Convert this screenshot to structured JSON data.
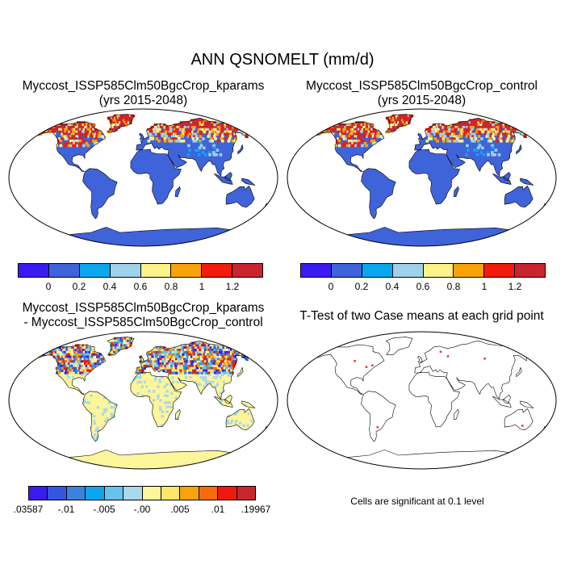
{
  "main_title": "ANN QSNOMELT (mm/d)",
  "panels": {
    "top_left": {
      "title_line1": "Myccost_ISSP585Clm50BgcCrop_kparams",
      "title_line2": "(yrs 2015-2048)"
    },
    "top_right": {
      "title_line1": "Myccost_ISSP585Clm50BgcCrop_control",
      "title_line2": "(yrs 2015-2048)"
    },
    "bottom_left": {
      "title_line1": "Myccost_ISSP585Clm50BgcCrop_kparams",
      "title_line2": "- Myccost_ISSP585Clm50BgcCrop_control"
    },
    "bottom_right": {
      "title_line1": "T-Test of two Case means at each grid point"
    }
  },
  "colorbar_abs": {
    "colors": [
      "#3a1cf0",
      "#3f63d8",
      "#0aa6ee",
      "#9fd2ea",
      "#fdf18a",
      "#f9a30a",
      "#f01c0c",
      "#c8262e"
    ],
    "labels": [
      "0",
      "0.2",
      "0.4",
      "0.6",
      "0.8",
      "1",
      "1.2"
    ]
  },
  "colorbar_diff": {
    "colors": [
      "#3a1cf0",
      "#3455e3",
      "#3c81de",
      "#0ea5ee",
      "#66c3ee",
      "#a8d8ea",
      "#fdf59a",
      "#fde56a",
      "#f9a30a",
      "#f86a0c",
      "#ef1a0c",
      "#c8262e"
    ],
    "labels": [
      ".03587",
      "-.01",
      "-.005",
      "-.00",
      ".005",
      ".01",
      ".19967"
    ]
  },
  "significance_note": "Cells are significant at 0.1 level",
  "colors": {
    "ocean": "#ffffff",
    "land_abs": "#3f63d8",
    "land_diff": "#fdf59a",
    "coast": "#000000",
    "significant": "#e8322a"
  }
}
